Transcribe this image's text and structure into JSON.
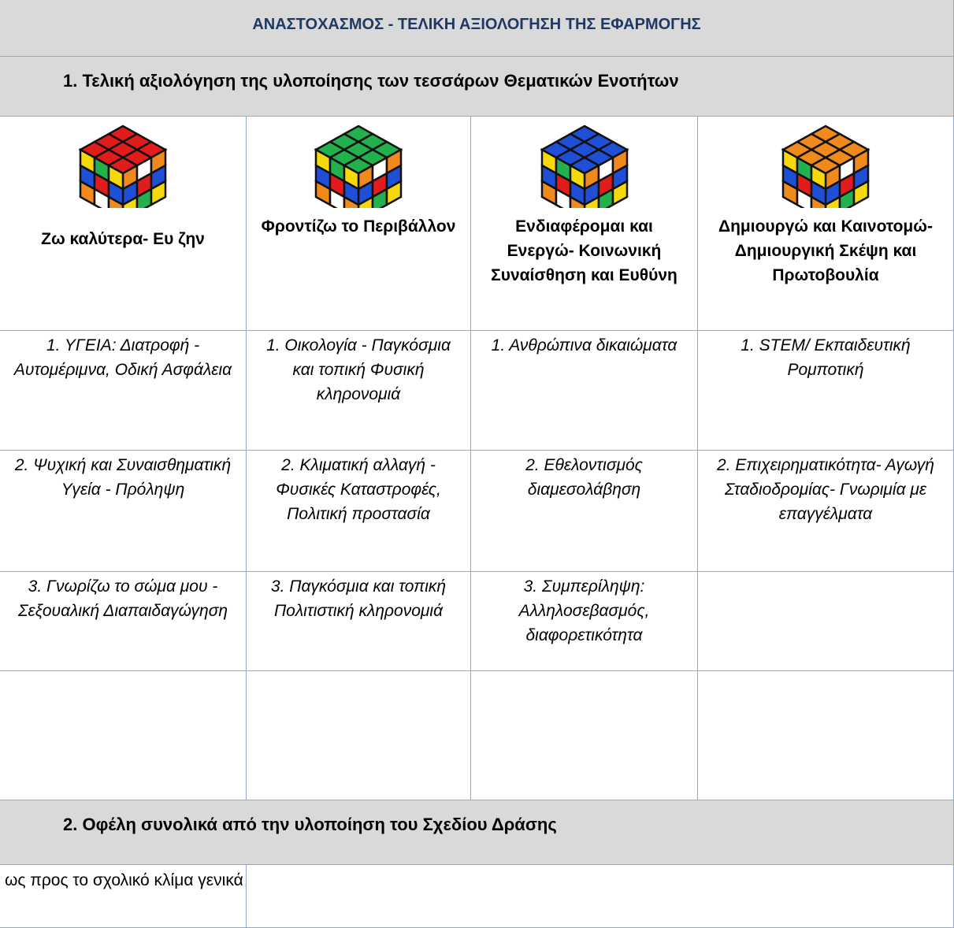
{
  "header": {
    "title": "ΑΝΑΣΤΟΧΑΣΜΟΣ - ΤΕΛΙΚΗ ΑΞΙΟΛΟΓΗΣΗ ΤΗΣ ΕΦΑΡΜΟΓΗΣ"
  },
  "sections": [
    {
      "title": "1. Τελική αξιολόγηση της υλοποίησης των τεσσάρων Θεματικών Ενοτήτων"
    },
    {
      "title": "2. Οφέλη συνολικά από την υλοποίηση του Σχεδίου Δράσης"
    }
  ],
  "table": {
    "headers": [
      "Ζω καλύτερα- Ευ ζην",
      "Φροντίζω το Περιβάλλον",
      "Ενδιαφέρομαι και Ενεργώ- Κοινωνική Συναίσθηση και Ευθύνη",
      "Δημιουργώ και Καινοτομώ- Δημιουργική Σκέψη και Πρωτοβουλία"
    ],
    "rows": [
      [
        "1. ΥΓΕΙΑ: Διατροφή - Αυτομέριμνα, Οδική Ασφάλεια",
        "1. Οικολογία - Παγκόσμια και τοπική Φυσική κληρονομιά",
        "1. Ανθρώπινα δικαιώματα",
        "1. STEM/ Εκπαιδευτική Ρομποτική"
      ],
      [
        "2. Ψυχική και Συναισθηματική Υγεία - Πρόληψη",
        "2. Κλιματική αλλαγή - Φυσικές Καταστροφές, Πολιτική προστασία",
        "2. Εθελοντισμός διαμεσολάβηση",
        "2. Επιχειρηματικότητα- Αγωγή Σταδιοδρομίας- Γνωριμία με επαγγέλματα"
      ],
      [
        "3. Γνωρίζω το σώμα μου - Σεξουαλική Διαπαιδαγώγηση",
        "3. Παγκόσμια και τοπική Πολιτιστική κληρονομιά",
        "3. Συμπερίληψη: Αλληλοσεβασμός, διαφορετικότητα"
      ]
    ]
  },
  "benefits": {
    "rows": [
      {
        "label": "ως προς το σχολικό κλίμα γενικά"
      }
    ]
  }
}
